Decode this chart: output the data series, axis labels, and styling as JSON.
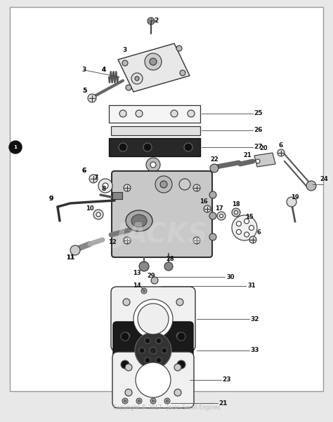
{
  "bg_outer": "#e8e8e8",
  "bg_inner": "#ffffff",
  "lc": "#333333",
  "gray_light": "#cccccc",
  "gray_mid": "#888888",
  "gray_dark": "#555555",
  "black": "#111111",
  "copyright_text": "Copyright © 2017 - Jacks Small Engines",
  "copyright_color": "#bbbbbb",
  "watermark_text": "JACKS",
  "fig_width": 4.74,
  "fig_height": 6.02,
  "dpi": 100
}
